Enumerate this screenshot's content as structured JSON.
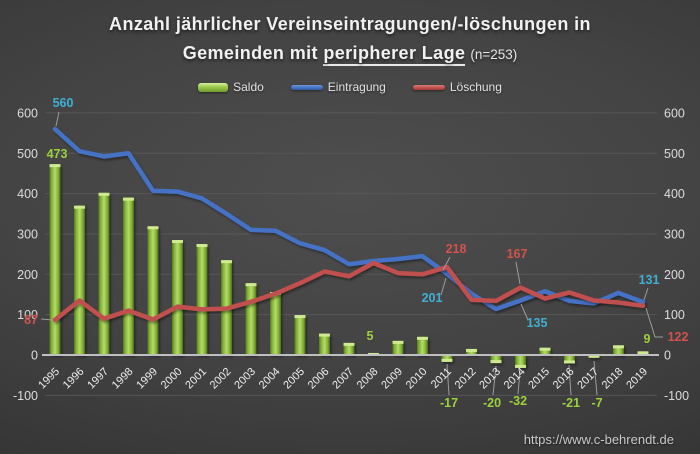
{
  "title": {
    "line1": "Anzahl jährlicher Vereinseintragungen/-löschungen in",
    "line2_prefix": "Gemeinden mit ",
    "line2_bold": "peripherer",
    "line2_rest": " Lage",
    "note": "(n=253)"
  },
  "footer": {
    "url": "https://www.c-behrendt.de"
  },
  "colors": {
    "background": "#3f3f3f",
    "saldo_bar": "#8CC63E",
    "eintragung_line": "#4472C4",
    "loeschung_line": "#C0504D",
    "label_cyan": "#3FB0D4",
    "label_green": "#9CD13E",
    "label_red": "#D2534E",
    "gridline": "#5a5a5a",
    "axis_zero_line": "#bfbfbf",
    "tick_text": "#dcdcdc"
  },
  "chart_data": {
    "type": "bar",
    "subtype": "combo-bar-plus-two-lines",
    "title": "Anzahl jährlicher Vereinseintragungen/-löschungen in Gemeinden mit peripherer Lage (n=253)",
    "categories": [
      1995,
      1996,
      1997,
      1998,
      1999,
      2000,
      2001,
      2002,
      2003,
      2004,
      2005,
      2006,
      2007,
      2008,
      2009,
      2010,
      2011,
      2012,
      2013,
      2014,
      2015,
      2016,
      2017,
      2018,
      2019
    ],
    "series": [
      {
        "name": "Saldo",
        "type": "bar",
        "color": "#8CC63E",
        "values": [
          473,
          370,
          402,
          390,
          319,
          285,
          275,
          235,
          178,
          156,
          99,
          53,
          30,
          5,
          35,
          45,
          -17,
          15,
          -20,
          -32,
          18,
          -21,
          -7,
          24,
          9
        ]
      },
      {
        "name": "Eintragung",
        "type": "line",
        "color": "#4472C4",
        "values": [
          560,
          505,
          492,
          500,
          407,
          405,
          388,
          350,
          310,
          308,
          277,
          260,
          225,
          233,
          238,
          245,
          201,
          152,
          114,
          135,
          158,
          134,
          128,
          154,
          131
        ]
      },
      {
        "name": "Löschung",
        "type": "line",
        "color": "#C0504D",
        "values": [
          87,
          135,
          90,
          110,
          88,
          120,
          113,
          115,
          132,
          152,
          178,
          207,
          195,
          228,
          203,
          200,
          218,
          137,
          134,
          167,
          140,
          155,
          135,
          130,
          122
        ]
      }
    ],
    "ylim": [
      -100,
      600
    ],
    "yticks": [
      600,
      500,
      400,
      300,
      200,
      100,
      0,
      -100
    ],
    "axes": "dual identical value axes left and right",
    "grid": true,
    "legend_position": "top",
    "label_colors": {
      "Saldo": "#9CD13E",
      "Eintragung": "#3FB0D4",
      "Löschung": "#D2534E"
    },
    "annotations": [
      {
        "series": "Eintragung",
        "year": 1995,
        "text": "560"
      },
      {
        "series": "Saldo",
        "year": 1995,
        "text": "473"
      },
      {
        "series": "Löschung",
        "year": 1995,
        "text": "87"
      },
      {
        "series": "Saldo",
        "year": 2008,
        "text": "5"
      },
      {
        "series": "Löschung",
        "year": 2011,
        "text": "218"
      },
      {
        "series": "Eintragung",
        "year": 2011,
        "text": "201"
      },
      {
        "series": "Löschung",
        "year": 2014,
        "text": "167"
      },
      {
        "series": "Eintragung",
        "year": 2014,
        "text": "135"
      },
      {
        "series": "Eintragung",
        "year": 2019,
        "text": "131"
      },
      {
        "series": "Löschung",
        "year": 2019,
        "text": "122"
      },
      {
        "series": "Saldo",
        "year": 2019,
        "text": "9"
      },
      {
        "series": "Saldo",
        "year": 2011,
        "text": "-17"
      },
      {
        "series": "Saldo",
        "year": 2013,
        "text": "-20"
      },
      {
        "series": "Saldo",
        "year": 2014,
        "text": "-32"
      },
      {
        "series": "Saldo",
        "year": 2016,
        "text": "-21"
      },
      {
        "series": "Saldo",
        "year": 2017,
        "text": "-7"
      }
    ]
  }
}
